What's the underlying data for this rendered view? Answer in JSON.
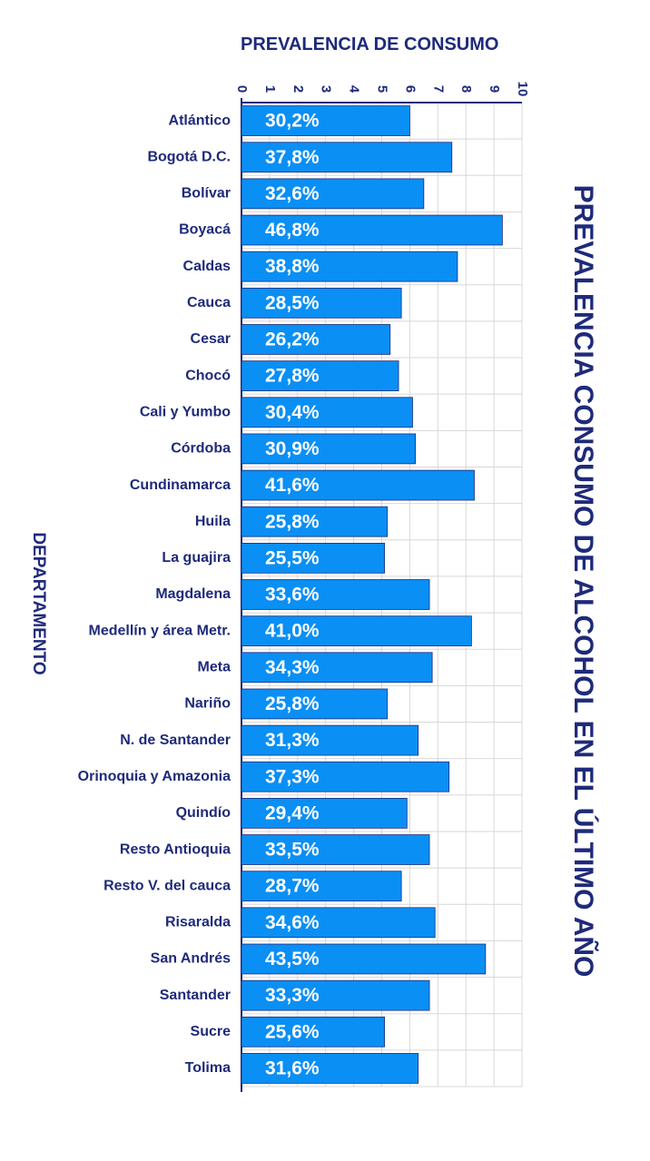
{
  "chart_data": {
    "type": "bar",
    "orientation": "horizontal",
    "title": "PREVALENCIA CONSUMO DE ALCOHOL EN EL ÚLTIMO AÑO",
    "xlabel": "PREVALENCIA DE CONSUMO",
    "ylabel": "DEPARTAMENTO",
    "xlim": [
      0,
      10
    ],
    "xticks": [
      "0",
      "1",
      "2",
      "3",
      "4",
      "5",
      "6",
      "7",
      "8",
      "9",
      "10"
    ],
    "grid": true,
    "categories": [
      "Atlántico",
      "Bogotá D.C.",
      "Bolívar",
      "Boyacá",
      "Caldas",
      "Cauca",
      "Cesar",
      "Chocó",
      "Cali y Yumbo",
      "Córdoba",
      "Cundinamarca",
      "Huila",
      "La guajira",
      "Magdalena",
      "Medellín y área Metr.",
      "Meta",
      "Nariño",
      "N. de Santander",
      "Orinoquia y Amazonia",
      "Quindío",
      "Resto Antioquia",
      "Resto V. del cauca",
      "Risaralda",
      "San Andrés",
      "Santander",
      "Sucre",
      "Tolima"
    ],
    "values": [
      6.0,
      7.5,
      6.5,
      9.3,
      7.7,
      5.7,
      5.3,
      5.6,
      6.1,
      6.2,
      8.3,
      5.2,
      5.1,
      6.7,
      8.2,
      6.8,
      5.2,
      6.3,
      7.4,
      5.9,
      6.7,
      5.7,
      6.9,
      8.7,
      6.7,
      5.1,
      6.3
    ],
    "data_labels": [
      "30,2%",
      "37,8%",
      "32,6%",
      "46,8%",
      "38,8%",
      "28,5%",
      "26,2%",
      "27,8%",
      "30,4%",
      "30,9%",
      "41,6%",
      "25,8%",
      "25,5%",
      "33,6%",
      "41,0%",
      "34,3%",
      "25,8%",
      "31,3%",
      "37,3%",
      "29,4%",
      "33,5%",
      "28,7%",
      "34,6%",
      "43,5%",
      "33,3%",
      "25,6%",
      "31,6%"
    ],
    "colors": {
      "bar": "#0a8ff5",
      "bar_edge": "#1f2a7a",
      "text": "#1f2a7a",
      "grid": "#d8d8d8",
      "label": "#ffffff"
    }
  }
}
